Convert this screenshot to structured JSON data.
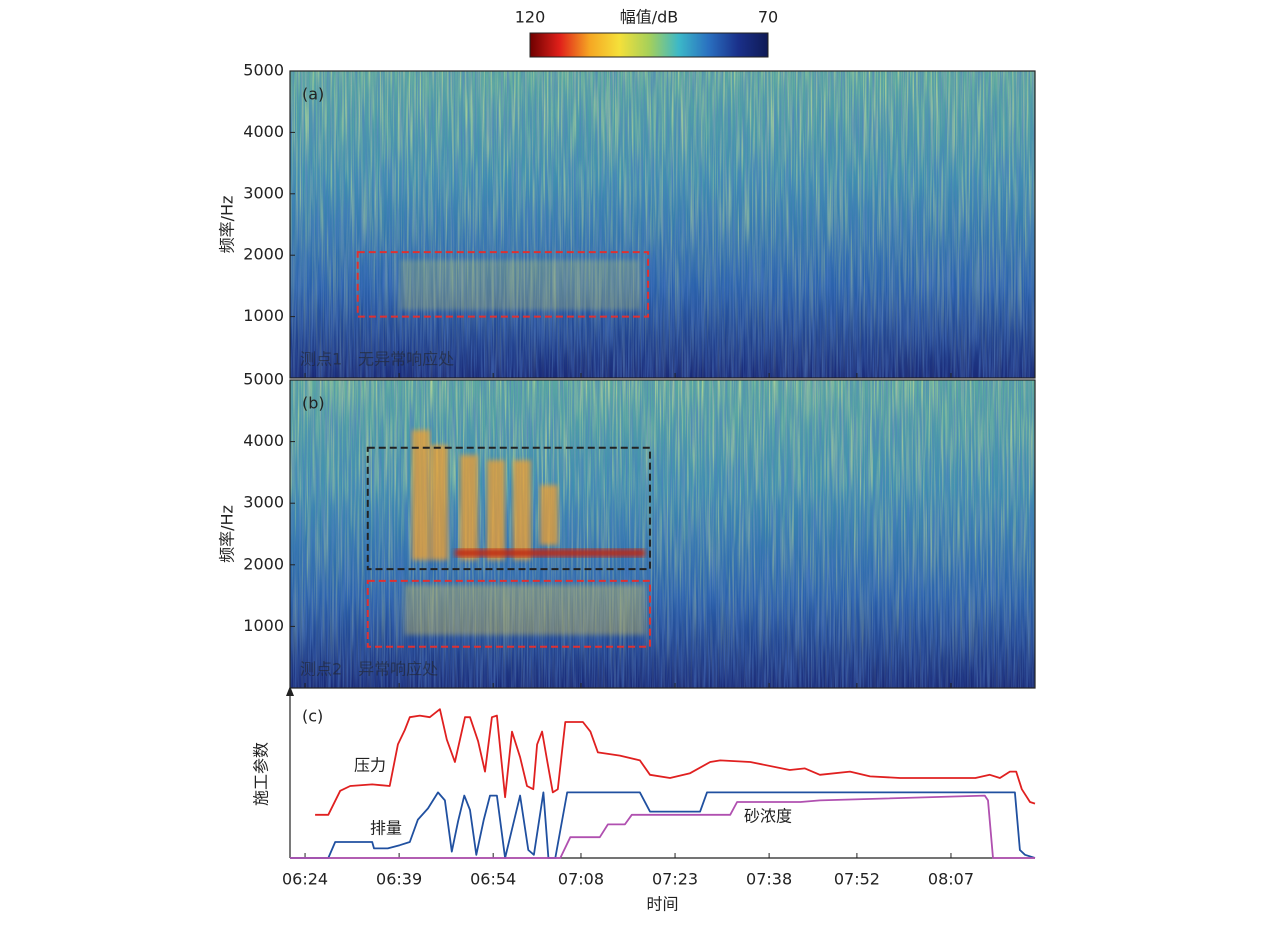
{
  "chart_data": [
    {
      "type": "spectrogram",
      "panel_label": "(a)",
      "ylabel": "频率/Hz",
      "annotation": "测点1　无异常响应处",
      "ylim": [
        0,
        5000
      ],
      "yticks": [
        1000,
        2000,
        3000,
        4000,
        5000
      ],
      "colorbar": {
        "label": "幅值/dB",
        "lim": [
          120,
          70
        ],
        "ticks": [
          120,
          70
        ],
        "colors": [
          "#6e0000",
          "#e0201a",
          "#f5a623",
          "#f5e03a",
          "#a6d05a",
          "#3cb8c8",
          "#2a70c0",
          "#1a308a",
          "#0f1a55"
        ]
      },
      "boxes": [
        {
          "x": [
            392.4,
            438.7
          ],
          "y": [
            1000,
            2050
          ],
          "color": "#e03030"
        }
      ]
    },
    {
      "type": "spectrogram",
      "panel_label": "(b)",
      "ylabel": "频率/Hz",
      "annotation": "测点2　异常响应处",
      "ylim": [
        0,
        5000
      ],
      "yticks": [
        1000,
        2000,
        3000,
        4000,
        5000
      ],
      "boxes": [
        {
          "x": [
            394.0,
            439.0
          ],
          "y": [
            1930,
            3900
          ],
          "color": "#222222"
        },
        {
          "x": [
            394.0,
            439.0
          ],
          "y": [
            670,
            1740
          ],
          "color": "#e03030"
        }
      ]
    },
    {
      "type": "line",
      "panel_label": "(c)",
      "ylabel": "施工参数",
      "xlabel": "时间",
      "xlim": [
        381.6,
        500.4
      ],
      "ylim": [
        0,
        105
      ],
      "xticks": [
        {
          "value": 384,
          "label": "06:24"
        },
        {
          "value": 399,
          "label": "06:39"
        },
        {
          "value": 414,
          "label": "06:54"
        },
        {
          "value": 428,
          "label": "07:08"
        },
        {
          "value": 443,
          "label": "07:23"
        },
        {
          "value": 458,
          "label": "07:38"
        },
        {
          "value": 472,
          "label": "07:52"
        },
        {
          "value": 487,
          "label": "08:07"
        }
      ],
      "series": [
        {
          "name": "压力",
          "color": "#e02020",
          "x": [
            385.6,
            387.7,
            389.6,
            391.2,
            394.7,
            397.5,
            398.8,
            399.9,
            400.7,
            402.3,
            403.9,
            405.5,
            406.6,
            407.9,
            409.5,
            410.3,
            411.6,
            412.7,
            413.8,
            414.6,
            415.9,
            417.0,
            418.3,
            419.4,
            420.4,
            421.0,
            421.8,
            422.6,
            423.5,
            424.3,
            425.5,
            428.3,
            429.5,
            430.7,
            434.2,
            437.4,
            439.0,
            442.2,
            445.4,
            448.6,
            450.2,
            455.0,
            461.3,
            463.7,
            466.1,
            470.9,
            474.1,
            478.9,
            486.9,
            490.9,
            493.2,
            494.8,
            496.4,
            497.4,
            498.3,
            499.6,
            500.4
          ],
          "values": [
            27,
            27,
            42,
            45,
            46,
            45,
            71,
            80,
            88,
            89,
            88,
            93,
            74,
            60,
            88,
            88,
            73,
            54,
            88,
            89,
            38,
            79,
            63,
            45,
            43,
            71,
            79,
            61,
            41,
            43,
            85,
            85,
            79,
            66,
            64,
            61,
            52,
            50,
            53,
            60,
            61,
            60,
            55,
            56,
            52,
            54,
            51,
            50,
            50,
            50,
            52,
            50,
            54,
            54,
            43,
            35,
            34
          ]
        },
        {
          "name": "排量",
          "color": "#2050a0",
          "x": [
            381.6,
            387.7,
            388.8,
            392.0,
            394.7,
            395.0,
            397.2,
            399.1,
            400.7,
            402.0,
            403.6,
            405.2,
            406.3,
            407.4,
            408.4,
            409.4,
            410.3,
            411.3,
            412.5,
            413.5,
            414.6,
            415.9,
            417.0,
            418.3,
            419.6,
            420.5,
            422.0,
            422.8,
            423.9,
            425.8,
            426.6,
            437.4,
            439.0,
            447.0,
            448.1,
            494.8,
            497.2,
            498.0,
            498.8,
            500.4
          ],
          "values": [
            0,
            0,
            10,
            10,
            10,
            6,
            6,
            8,
            10,
            24,
            31,
            41,
            36,
            4,
            23,
            39,
            30,
            2,
            24,
            39,
            39,
            0,
            18,
            39,
            5,
            2,
            41,
            0,
            0,
            41,
            41,
            41,
            29,
            29,
            41,
            41,
            41,
            5,
            2,
            0
          ]
        },
        {
          "name": "砂浓度",
          "color": "#b050b0",
          "x": [
            381.6,
            424.7,
            426.3,
            431.0,
            432.3,
            435.0,
            436.1,
            451.8,
            452.9,
            463.0,
            466.1,
            492.4,
            492.9,
            493.7,
            500.4
          ],
          "values": [
            0,
            0,
            13,
            13,
            21,
            21,
            27,
            27,
            35,
            35,
            36,
            39,
            36,
            0,
            0
          ]
        }
      ]
    }
  ]
}
